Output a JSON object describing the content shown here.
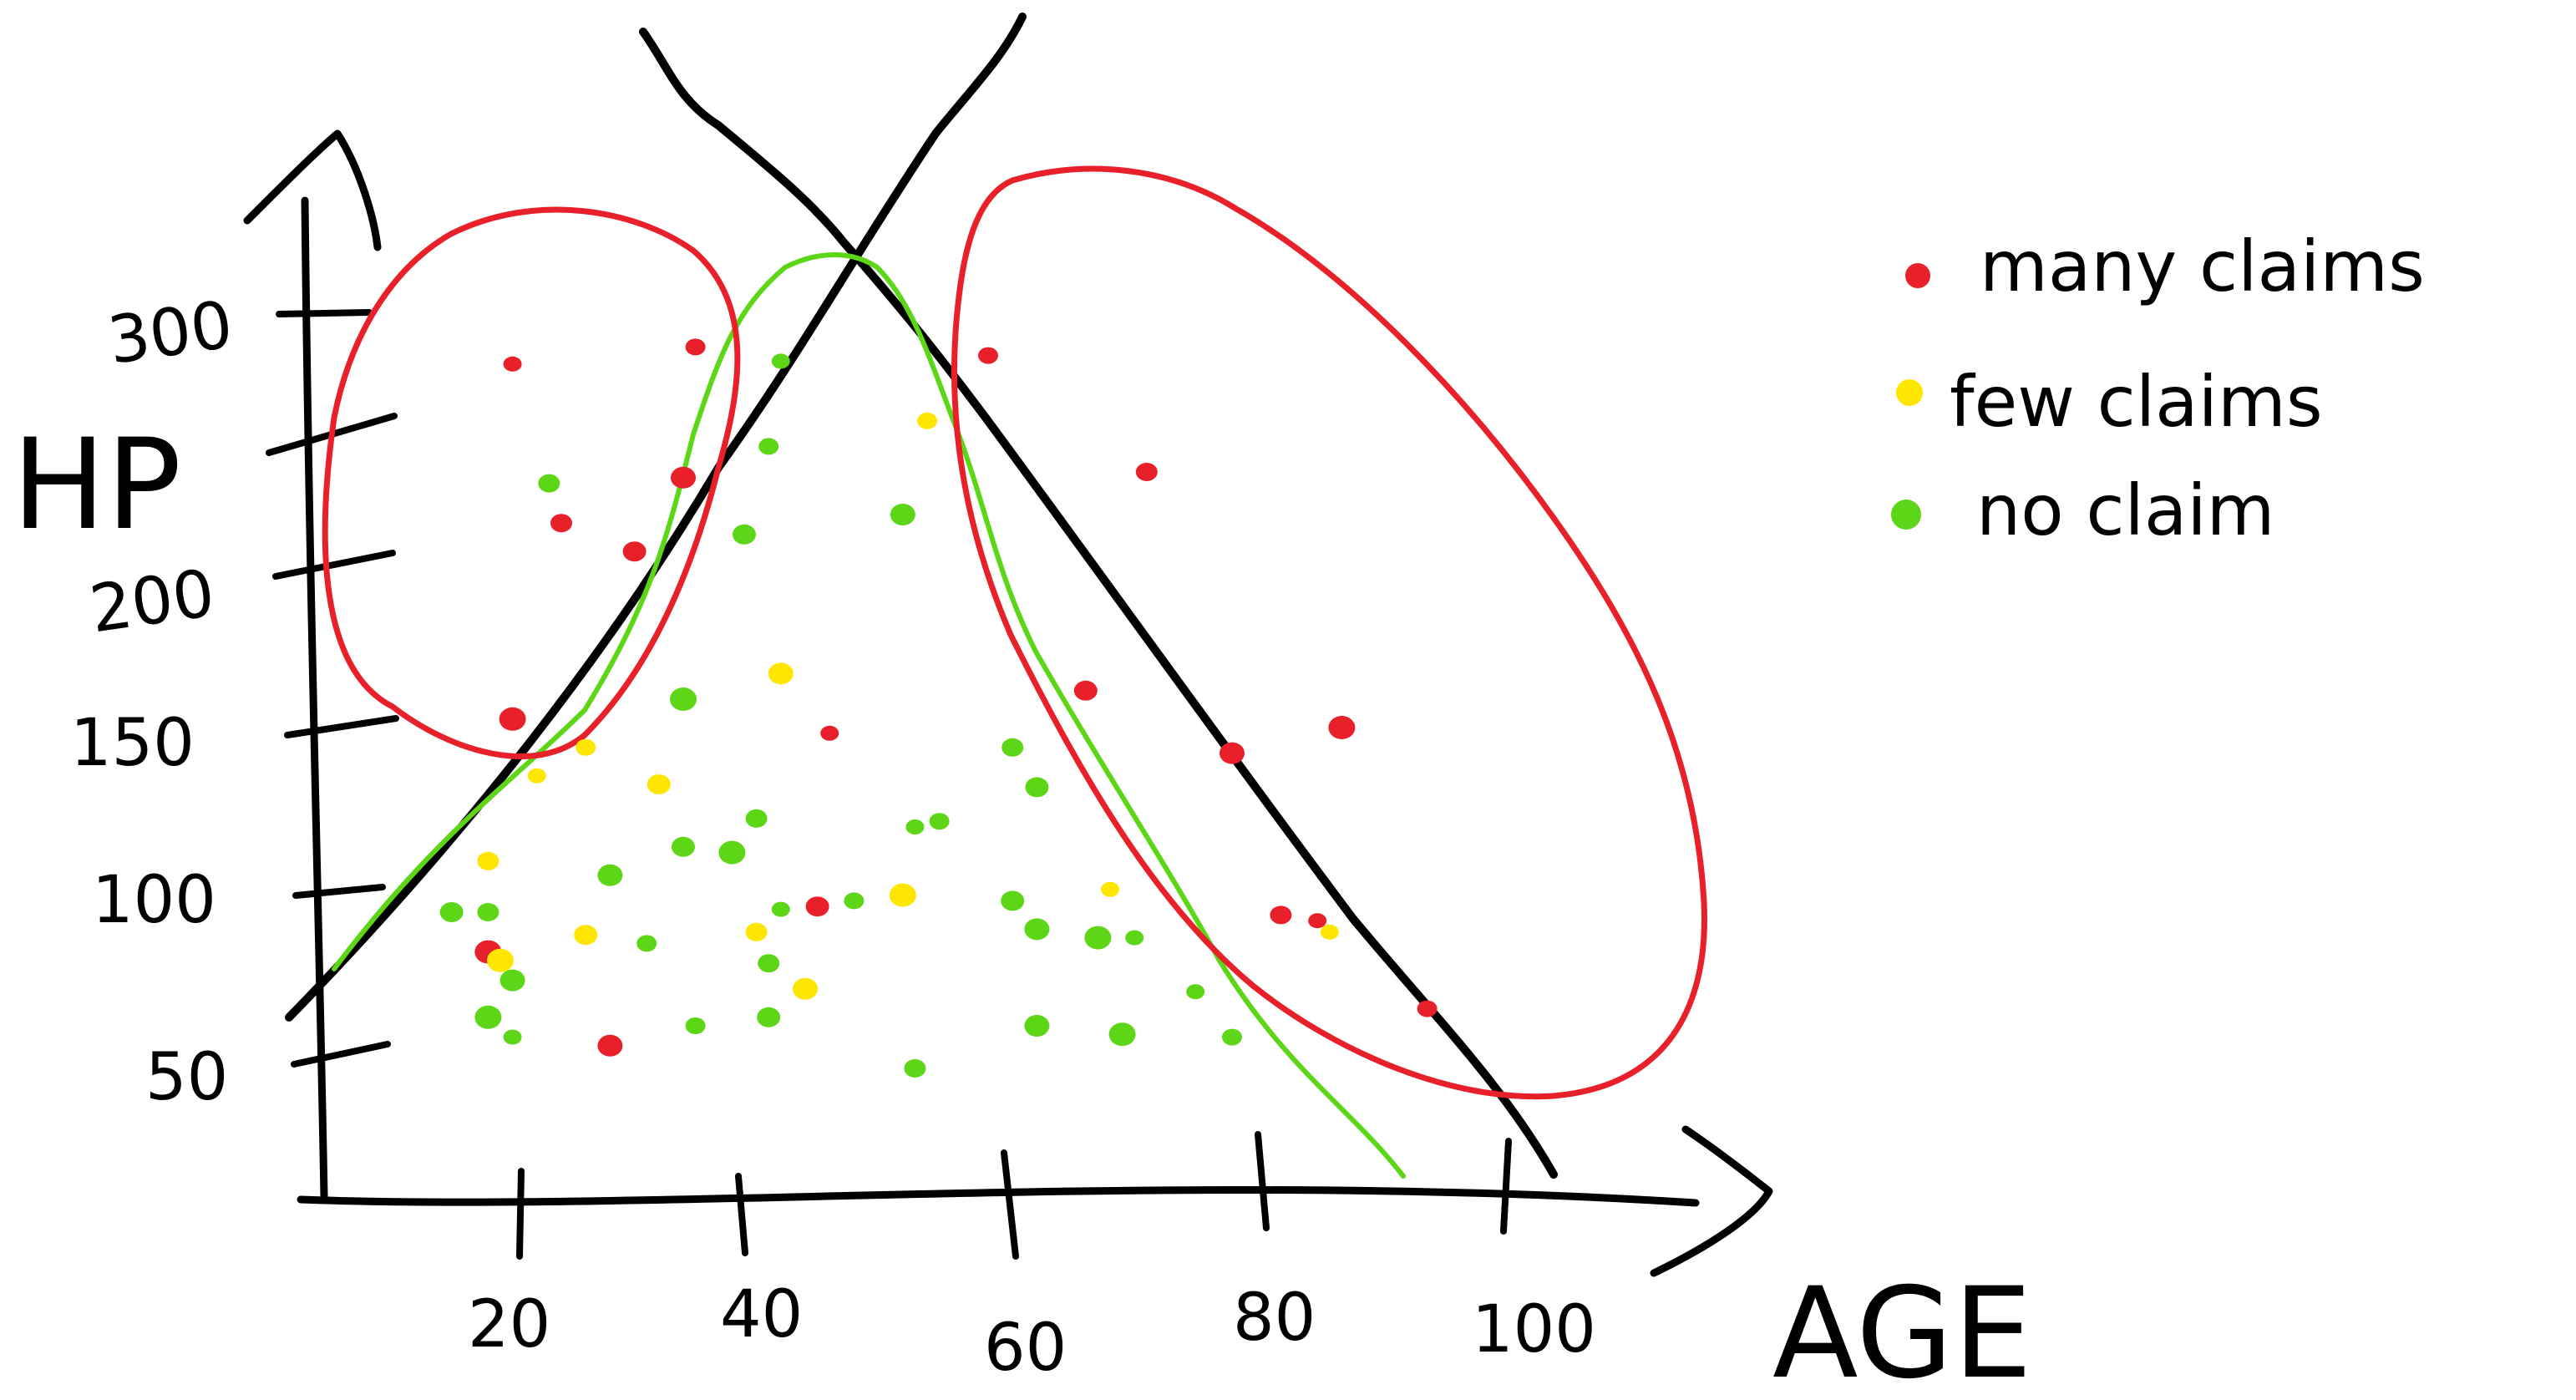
{
  "chart_data": {
    "type": "scatter",
    "xlabel": "AGE",
    "ylabel": "HP",
    "xlim": [
      0,
      110
    ],
    "ylim": [
      30,
      330
    ],
    "x_ticks": [
      {
        "value": 20,
        "label": "20"
      },
      {
        "value": 40,
        "label": "40"
      },
      {
        "value": 60,
        "label": "60"
      },
      {
        "value": 80,
        "label": "80"
      },
      {
        "value": 100,
        "label": "100"
      }
    ],
    "y_ticks": [
      {
        "value": 50,
        "label": "50"
      },
      {
        "value": 100,
        "label": "100"
      },
      {
        "value": 150,
        "label": "150"
      },
      {
        "value": 200,
        "label": "200"
      },
      {
        "value": 300,
        "label": "300"
      }
    ],
    "legend_position": "top-right",
    "grid": false,
    "series": [
      {
        "name": "many claims",
        "color": "#e8202a",
        "points": [
          [
            16,
            293
          ],
          [
            31,
            299
          ],
          [
            20,
            237
          ],
          [
            26,
            227
          ],
          [
            30,
            253
          ],
          [
            16,
            168
          ],
          [
            42,
            163
          ],
          [
            55,
            296
          ],
          [
            68,
            255
          ],
          [
            63,
            178
          ],
          [
            75,
            156
          ],
          [
            84,
            165
          ],
          [
            82,
            97
          ],
          [
            91,
            66
          ],
          [
            79,
            99
          ],
          [
            41,
            102
          ],
          [
            24,
            53
          ],
          [
            14,
            86
          ]
        ]
      },
      {
        "name": "few claims",
        "color": "#ffe600",
        "points": [
          [
            18,
            148
          ],
          [
            22,
            158
          ],
          [
            14,
            118
          ],
          [
            28,
            145
          ],
          [
            38,
            184
          ],
          [
            48,
            106
          ],
          [
            65,
            108
          ],
          [
            50,
            273
          ],
          [
            36,
            93
          ],
          [
            22,
            92
          ],
          [
            40,
            73
          ],
          [
            15,
            83
          ],
          [
            83,
            93
          ]
        ]
      },
      {
        "name": "no claim",
        "color": "#5cd616",
        "points": [
          [
            38,
            294
          ],
          [
            37,
            264
          ],
          [
            19,
            251
          ],
          [
            35,
            233
          ],
          [
            48,
            240
          ],
          [
            30,
            175
          ],
          [
            49,
            130
          ],
          [
            51,
            132
          ],
          [
            36,
            133
          ],
          [
            30,
            123
          ],
          [
            24,
            113
          ],
          [
            34,
            121
          ],
          [
            38,
            101
          ],
          [
            44,
            104
          ],
          [
            57,
            158
          ],
          [
            57,
            104
          ],
          [
            59,
            94
          ],
          [
            64,
            91
          ],
          [
            67,
            91
          ],
          [
            27,
            89
          ],
          [
            14,
            100
          ],
          [
            11,
            100
          ],
          [
            16,
            76
          ],
          [
            14,
            63
          ],
          [
            16,
            56
          ],
          [
            31,
            60
          ],
          [
            37,
            82
          ],
          [
            37,
            63
          ],
          [
            59,
            60
          ],
          [
            66,
            57
          ],
          [
            72,
            72
          ],
          [
            75,
            56
          ],
          [
            49,
            45
          ],
          [
            59,
            144
          ]
        ]
      }
    ],
    "lines": [
      {
        "name": "",
        "color": "#000000"
      },
      {
        "name": "",
        "color": "#000000"
      },
      {
        "name": "",
        "color": "#5cd616"
      }
    ]
  }
}
